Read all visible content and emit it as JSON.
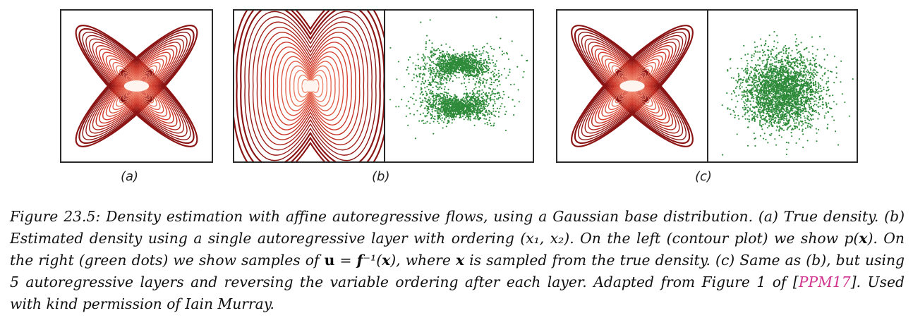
{
  "figure": {
    "panels": [
      {
        "id": "a",
        "label": "(a)",
        "plots": [
          "contour-x"
        ]
      },
      {
        "id": "b",
        "label": "(b)",
        "plots": [
          "contour-hourglass",
          "scatter-split"
        ]
      },
      {
        "id": "c",
        "label": "(c)",
        "plots": [
          "contour-x",
          "scatter-gaussian"
        ]
      }
    ],
    "colors": {
      "contour_dark": "#8b1414",
      "contour_mid": "#d23a2a",
      "contour_light": "#f28a70",
      "dots": "#2e8b3a",
      "frame": "#2a2a2a"
    }
  },
  "caption": {
    "part1": "Figure 23.5: Density estimation with affine autoregressive flows, using a Gaussian base distribution. (a) True density. (b) Estimated density using a single autoregressive layer with ordering ",
    "ordering": "(x₁, x₂)",
    "part2": ". On the left (contour plot) we show ",
    "px": "p(",
    "x1": "x",
    "px_close": ")",
    "part3": ". On the right (green dots) we show samples of ",
    "u": "u",
    "eq": " = ",
    "f": "f",
    "finv": "⁻¹(",
    "x2": "x",
    "close2": ")",
    "part4": ", where ",
    "x3": "x",
    "part5": " is sampled from the true density. (c) Same as (b), but using 5 autoregressive layers and reversing the variable ordering after each layer. Adapted from Figure 1 of [",
    "cite": "PPM17",
    "part6": "]. Used with kind permission of Iain Murray."
  }
}
